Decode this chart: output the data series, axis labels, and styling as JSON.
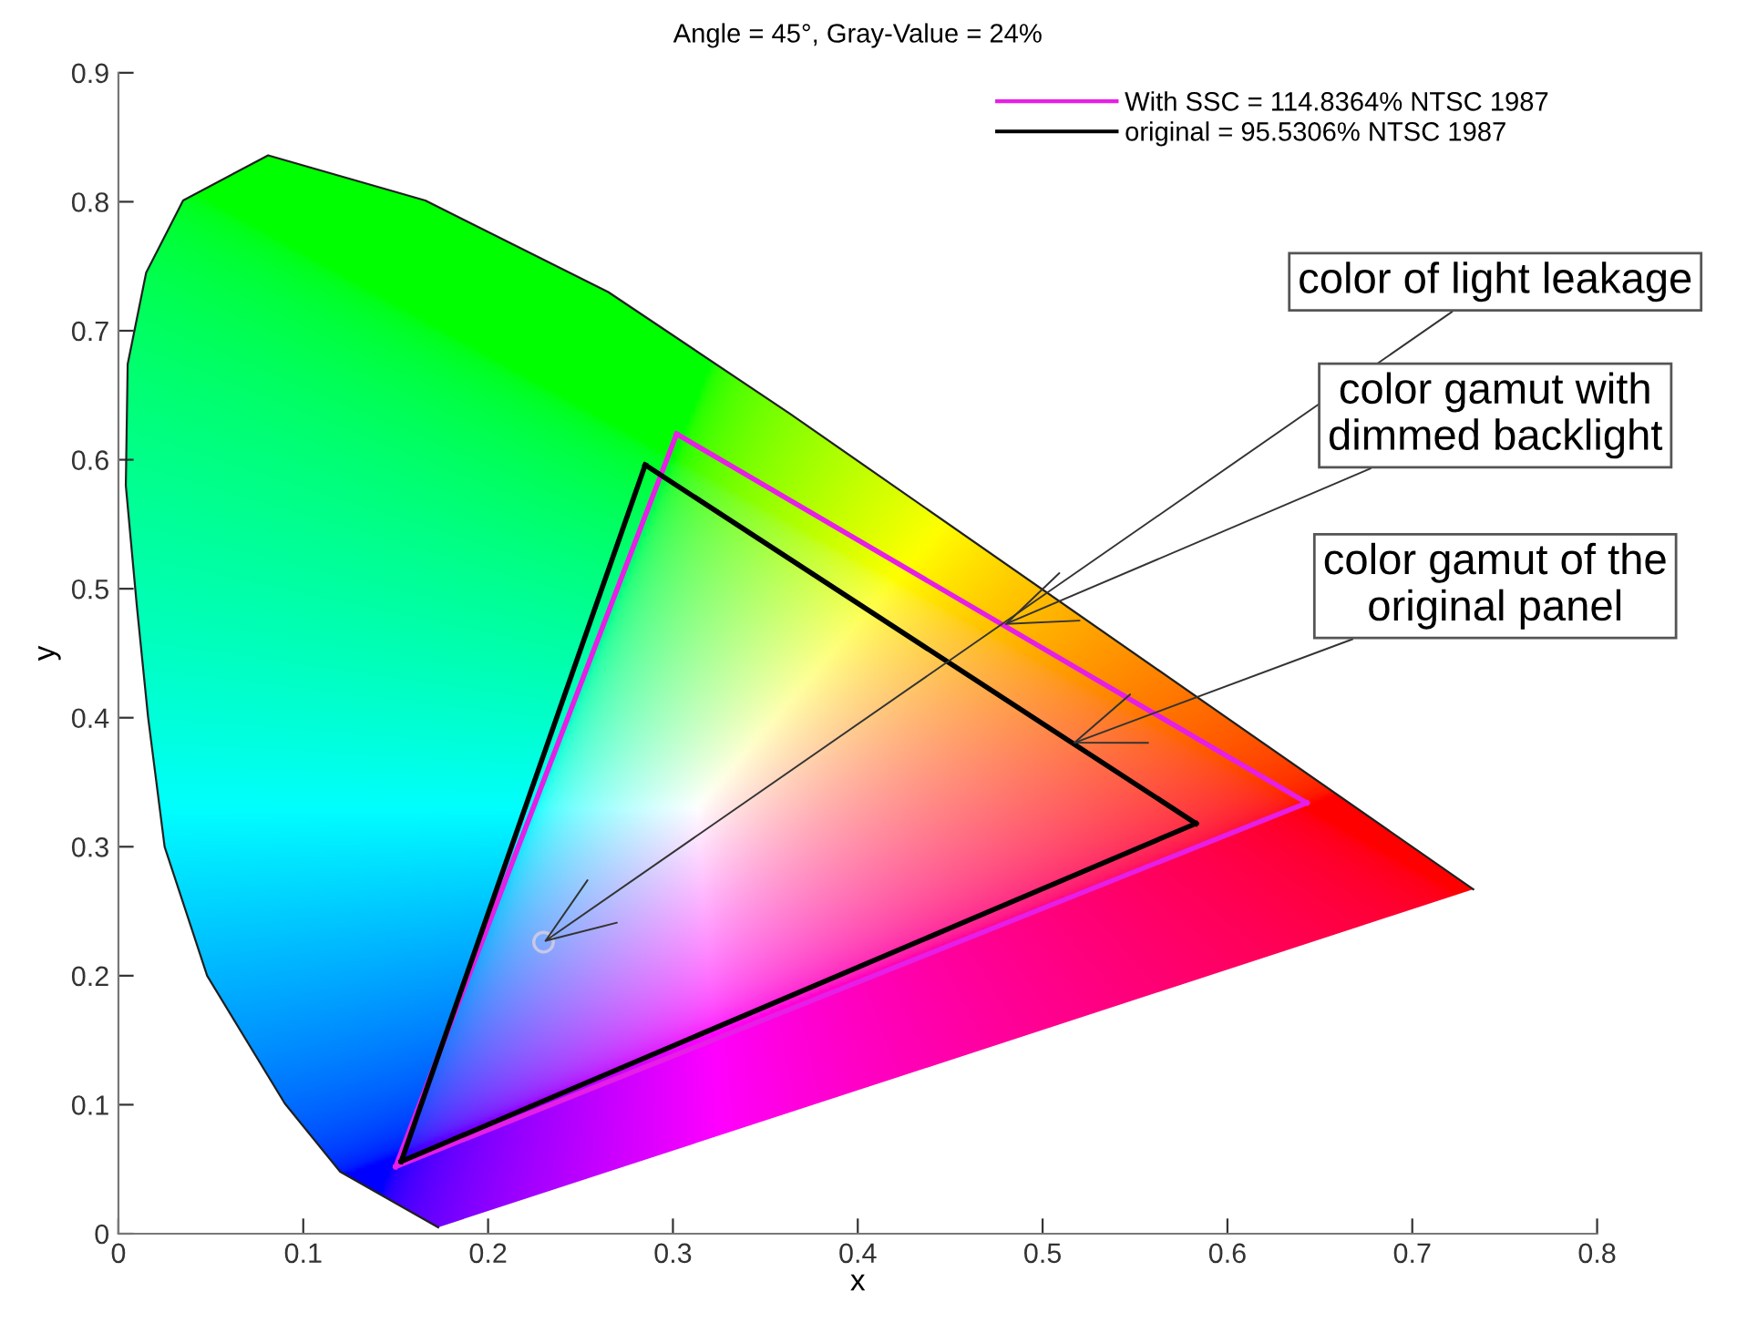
{
  "chart_data": {
    "type": "line",
    "title": "Angle = 45°, Gray-Value = 24%",
    "xlabel": "x",
    "ylabel": "y",
    "xlim": [
      0,
      0.8
    ],
    "ylim": [
      0,
      0.9
    ],
    "xticks": [
      0,
      0.1,
      0.2,
      0.3,
      0.4,
      0.5,
      0.6,
      0.7,
      0.8
    ],
    "yticks": [
      0,
      0.1,
      0.2,
      0.3,
      0.4,
      0.5,
      0.6,
      0.7,
      0.8,
      0.9
    ],
    "grid": false,
    "legend": "top right",
    "marker": "none",
    "line_style": "solid",
    "series": [
      {
        "color": "#202020",
        "x": [
          0.173,
          0.12,
          0.09,
          0.048,
          0.025,
          0.016,
          0.01,
          0.004,
          0.005,
          0.015,
          0.035,
          0.081,
          0.166,
          0.265,
          0.363,
          0.733
        ],
        "values": [
          0.005,
          0.048,
          0.101,
          0.2,
          0.3,
          0.401,
          0.486,
          0.58,
          0.674,
          0.745,
          0.801,
          0.836,
          0.801,
          0.73,
          0.636,
          0.267
        ]
      },
      {
        "name": "With SSC = 114.8364% NTSC 1987",
        "color": "#e61ee6",
        "x": [
          0.15,
          0.302
        ],
        "values": [
          0.052,
          0.62
        ]
      },
      {
        "color": "#e61ee6",
        "x": [
          0.302,
          0.643
        ],
        "values": [
          0.62,
          0.334
        ]
      },
      {
        "color": "#e61ee6",
        "x": [
          0.643,
          0.15
        ],
        "values": [
          0.334,
          0.052
        ]
      },
      {
        "name": "original = 95.5306% NTSC 1987",
        "color": "#000000",
        "x": [
          0.153,
          0.285
        ],
        "values": [
          0.056,
          0.596
        ]
      },
      {
        "color": "#000000",
        "x": [
          0.285,
          0.583
        ],
        "values": [
          0.596,
          0.318
        ]
      },
      {
        "color": "#000000",
        "x": [
          0.583,
          0.153
        ],
        "values": [
          0.318,
          0.056
        ]
      },
      {
        "type": "scatter",
        "marker": "circle",
        "color": "#c8c8e6",
        "x": [
          0.23
        ],
        "values": [
          0.226
        ]
      }
    ],
    "annotations": [
      {
        "text": "color of light leakage",
        "x": 0.23,
        "y": 0.226
      },
      {
        "text": "color gamut with\ndimmed backlight",
        "x": 0.479,
        "y": 0.472
      },
      {
        "text": "color gamut of the\noriginal panel",
        "x": 0.516,
        "y": 0.38
      }
    ]
  }
}
